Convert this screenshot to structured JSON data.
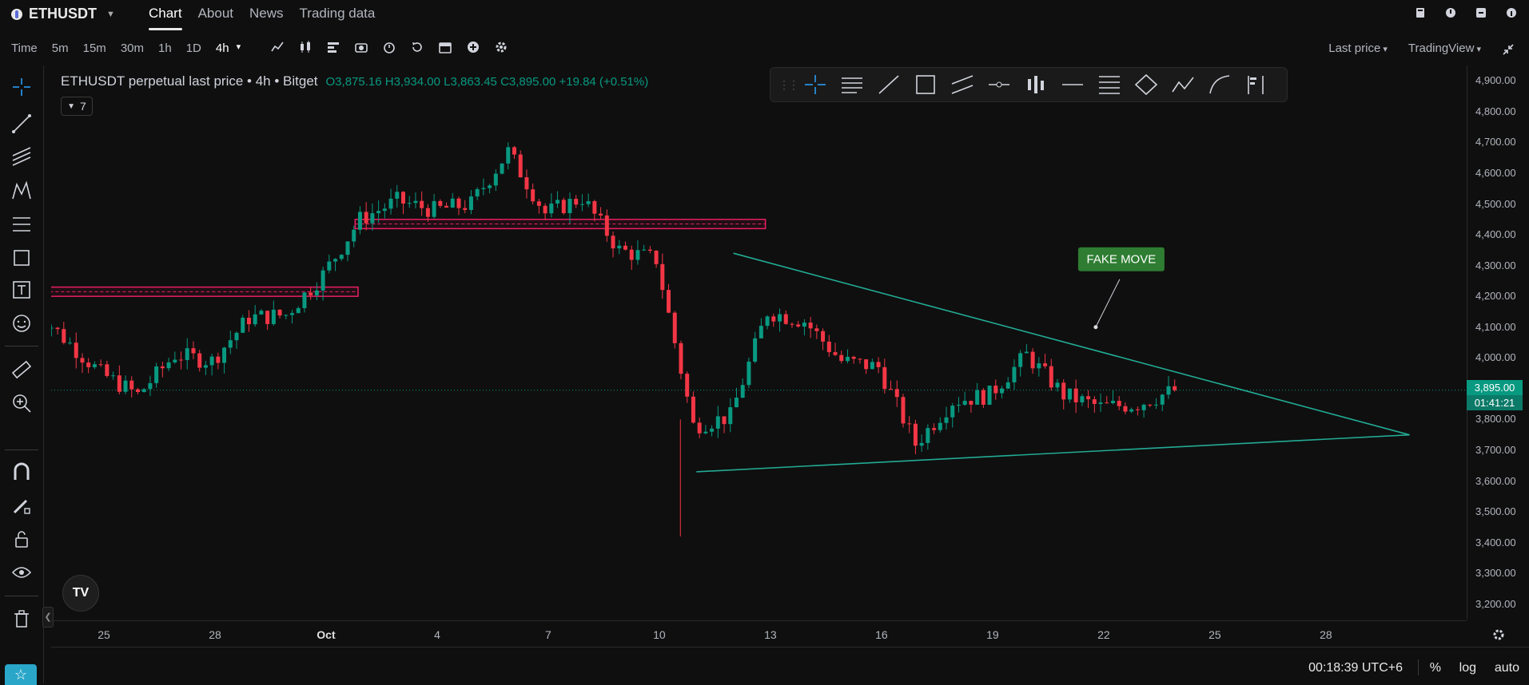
{
  "header": {
    "symbol": "ETHUSDT",
    "tabs": [
      {
        "label": "Chart",
        "active": true
      },
      {
        "label": "About",
        "active": false
      },
      {
        "label": "News",
        "active": false
      },
      {
        "label": "Trading data",
        "active": false
      }
    ]
  },
  "toolbar": {
    "intervals": [
      {
        "label": "Time",
        "active": false
      },
      {
        "label": "5m",
        "active": false
      },
      {
        "label": "15m",
        "active": false
      },
      {
        "label": "30m",
        "active": false
      },
      {
        "label": "1h",
        "active": false
      },
      {
        "label": "1D",
        "active": false
      },
      {
        "label": "4h",
        "active": true
      }
    ],
    "price_mode": "Last price",
    "chart_engine": "TradingView"
  },
  "legend": {
    "title": "ETHUSDT perpetual last price • 4h • Bitget",
    "open": "O3,875.16",
    "high": "H3,934.00",
    "low": "L3,863.45",
    "close": "C3,895.00",
    "change": "+19.84 (+0.51%)",
    "indicator_count": "7"
  },
  "annotation": {
    "label": "FAKE MOVE"
  },
  "price_axis": {
    "labels": [
      "4,900.00",
      "4,800.00",
      "4,700.00",
      "4,600.00",
      "4,500.00",
      "4,400.00",
      "4,300.00",
      "4,200.00",
      "4,100.00",
      "4,000.00",
      "3,800.00",
      "3,700.00",
      "3,600.00",
      "3,500.00",
      "3,400.00",
      "3,300.00",
      "3,200.00"
    ],
    "current_price": "3,895.00",
    "countdown": "01:41:21"
  },
  "time_axis": {
    "labels": [
      {
        "text": "25",
        "bold": false
      },
      {
        "text": "28",
        "bold": false
      },
      {
        "text": "Oct",
        "bold": true
      },
      {
        "text": "4",
        "bold": false
      },
      {
        "text": "7",
        "bold": false
      },
      {
        "text": "10",
        "bold": false
      },
      {
        "text": "13",
        "bold": false
      },
      {
        "text": "16",
        "bold": false
      },
      {
        "text": "19",
        "bold": false
      },
      {
        "text": "22",
        "bold": false
      },
      {
        "text": "25",
        "bold": false
      },
      {
        "text": "28",
        "bold": false
      }
    ]
  },
  "status": {
    "clock": "00:18:39 UTC+6",
    "percent_label": "%",
    "log_label": "log",
    "auto_label": "auto"
  },
  "colors": {
    "up": "#089981",
    "down": "#f23645",
    "trendline": "#22ab94",
    "zone": "#e91e63",
    "annotation_bg": "#2e7d32"
  },
  "chart_data": {
    "type": "candlestick",
    "symbol": "ETHUSDT",
    "interval": "4h",
    "ylim": [
      3150,
      4950
    ],
    "x_range_days": [
      "Sep 23",
      "Oct 30"
    ],
    "current_price": 3895.0,
    "daily_closes_approx": [
      {
        "date": "Sep 23",
        "value": 4180
      },
      {
        "date": "Sep 25",
        "value": 3950
      },
      {
        "date": "Sep 26",
        "value": 3880
      },
      {
        "date": "Sep 27",
        "value": 4010
      },
      {
        "date": "Sep 28",
        "value": 3990
      },
      {
        "date": "Sep 29",
        "value": 4130
      },
      {
        "date": "Sep 30",
        "value": 4140
      },
      {
        "date": "Oct 1",
        "value": 4270
      },
      {
        "date": "Oct 2",
        "value": 4450
      },
      {
        "date": "Oct 3",
        "value": 4510
      },
      {
        "date": "Oct 4",
        "value": 4480
      },
      {
        "date": "Oct 5",
        "value": 4500
      },
      {
        "date": "Oct 6",
        "value": 4670
      },
      {
        "date": "Oct 7",
        "value": 4470
      },
      {
        "date": "Oct 8",
        "value": 4520
      },
      {
        "date": "Oct 9",
        "value": 4350
      },
      {
        "date": "Oct 10",
        "value": 4320
      },
      {
        "date": "Oct 11",
        "value": 3780
      },
      {
        "date": "Oct 12",
        "value": 3810
      },
      {
        "date": "Oct 13",
        "value": 4150
      },
      {
        "date": "Oct 14",
        "value": 4120
      },
      {
        "date": "Oct 15",
        "value": 3990
      },
      {
        "date": "Oct 16",
        "value": 3970
      },
      {
        "date": "Oct 17",
        "value": 3720
      },
      {
        "date": "Oct 18",
        "value": 3860
      },
      {
        "date": "Oct 19",
        "value": 3880
      },
      {
        "date": "Oct 20",
        "value": 4010
      },
      {
        "date": "Oct 21",
        "value": 3880
      },
      {
        "date": "Oct 22",
        "value": 3840
      },
      {
        "date": "Oct 23",
        "value": 3850
      },
      {
        "date": "Oct 24",
        "value": 3895
      }
    ],
    "zones": [
      {
        "from_date": "Sep 23",
        "to_date": "Oct 1",
        "price_low": 4200,
        "price_high": 4230
      },
      {
        "from_date": "Oct 2",
        "to_date": "Oct 12",
        "price_low": 4420,
        "price_high": 4450
      }
    ],
    "trendlines": [
      {
        "from": {
          "date": "Oct 12",
          "price": 4340
        },
        "to": {
          "date": "Oct 30",
          "price": 3750
        }
      },
      {
        "from": {
          "date": "Oct 11",
          "price": 3630
        },
        "to": {
          "date": "Oct 30",
          "price": 3750
        }
      }
    ],
    "annotations": [
      {
        "text": "FAKE MOVE",
        "date": "Oct 22",
        "price": 4100
      }
    ]
  }
}
